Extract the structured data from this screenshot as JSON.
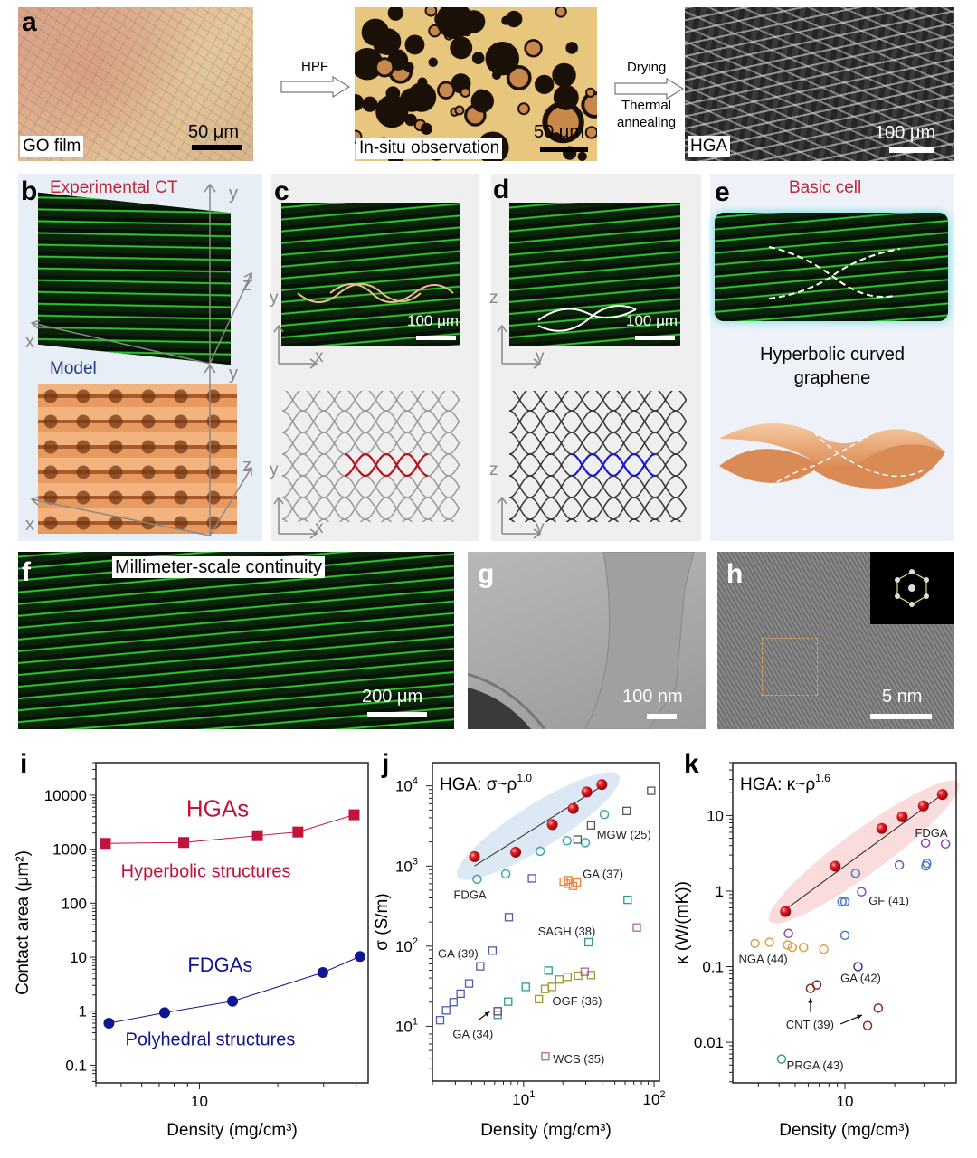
{
  "panels": {
    "a": "a",
    "b": "b",
    "c": "c",
    "d": "d",
    "e": "e",
    "f": "f",
    "g": "g",
    "h": "h",
    "i": "i",
    "j": "j",
    "k": "k"
  },
  "row_a": {
    "go_film_label": "GO film",
    "go_scale": "50 μm",
    "step1": "HPF",
    "insitu_label": "In-situ observation",
    "insitu_scale": "50 μm",
    "step2_line1": "Drying",
    "step2_line2": "Thermal",
    "step2_line3": "annealing",
    "hga_label": "HGA",
    "hga_scale": "100 μm"
  },
  "panel_b": {
    "title_ct": "Experimental CT",
    "title_model": "Model",
    "axis_x": "x",
    "axis_y": "y",
    "axis_z": "z"
  },
  "panel_c": {
    "scale": "100 μm",
    "axis_h": "x",
    "axis_v": "y",
    "highlight_color": "#b5121b"
  },
  "panel_d": {
    "scale": "100 μm",
    "axis_h": "y",
    "axis_v": "z",
    "highlight_color": "#1a1ac8"
  },
  "panel_e": {
    "title": "Basic cell",
    "caption_line1": "Hyperbolic curved",
    "caption_line2": "graphene"
  },
  "panel_f": {
    "label": "Millimeter-scale continuity",
    "scale": "200 μm"
  },
  "panel_g": {
    "scale": "100 nm"
  },
  "panel_h": {
    "scale": "5 nm"
  },
  "chart_data": [
    {
      "id": "i",
      "type": "line",
      "xscale": "log",
      "yscale": "log",
      "xlabel": "Density (mg/cm³)",
      "ylabel": "Contact area (μm²)",
      "xlim": [
        4,
        44.5
      ],
      "ylim": [
        0.047,
        40000
      ],
      "xticks": [
        {
          "v": 10,
          "t": "10"
        }
      ],
      "yticks": [
        {
          "v": 0.1,
          "t": "0.1"
        },
        {
          "v": 1,
          "t": "1"
        },
        {
          "v": 10,
          "t": "10"
        },
        {
          "v": 100,
          "t": "100"
        },
        {
          "v": 1000,
          "t": "1000"
        },
        {
          "v": 10000,
          "t": "10000"
        }
      ],
      "series": [
        {
          "name": "HGAs",
          "color": "#c0143c",
          "marker": "filled-square",
          "line": true,
          "label_at": [
            8.9,
            5680
          ],
          "label_size": 26,
          "x": [
            4.35,
            8.7,
            16.7,
            23.9,
            39.3
          ],
          "y": [
            1280,
            1330,
            1780,
            2080,
            4340
          ]
        },
        {
          "name": "FDGAs",
          "color": "#10168f",
          "marker": "filled-circle",
          "line": true,
          "label_at": [
            9.0,
            7.7
          ],
          "label_size": 22,
          "x": [
            4.49,
            7.35,
            13.4,
            29.8,
            41.4
          ],
          "y": [
            0.6,
            0.94,
            1.53,
            5.2,
            10.3
          ]
        }
      ],
      "annotations": [
        {
          "text": "Hyperbolic structures",
          "color": "#c0143c",
          "at": [
            4.99,
            401
          ]
        },
        {
          "text": "Polyhedral structures",
          "color": "#10168f",
          "at": [
            5.19,
            0.306
          ]
        }
      ]
    },
    {
      "id": "j",
      "type": "scatter",
      "xscale": "log",
      "yscale": "log",
      "title": "HGA: σ~ρ",
      "title_exponent": "1.0",
      "xlabel": "Density (mg/cm³)",
      "ylabel": "σ (S/m)",
      "xlim": [
        2,
        110
      ],
      "ylim": [
        2.07,
        19500
      ],
      "xticks": [
        {
          "v": 10,
          "t": "10",
          "sup": "1"
        },
        {
          "v": 100,
          "t": "10",
          "sup": "2"
        }
      ],
      "yticks": [
        {
          "v": 10,
          "t": "10",
          "sup": "1"
        },
        {
          "v": 100,
          "t": "10",
          "sup": "2"
        },
        {
          "v": 1000,
          "t": "10",
          "sup": "3"
        },
        {
          "v": 10000,
          "t": "10",
          "sup": "4"
        }
      ],
      "fit": {
        "from": [
          4.2,
          1000
        ],
        "to": [
          40,
          10000
        ],
        "band_color": "#dce8f4"
      },
      "series": [
        {
          "name": "",
          "color": "#d8101c",
          "marker": "sphere",
          "x": [
            4.2,
            8.7,
            16.6,
            24,
            30.5,
            39.8
          ],
          "y": [
            1310,
            1490,
            3300,
            5230,
            8410,
            10400
          ]
        },
        {
          "name": "FDGA",
          "color": "#3aa6b9",
          "marker": "open-circle",
          "label_at": [
            2.91,
            443
          ],
          "x": [
            4.4,
            7.3,
            13.4,
            21.5,
            29.7,
            41.6
          ],
          "y": [
            684,
            798,
            1530,
            2070,
            1960,
            4400
          ]
        },
        {
          "name": "MGW (25)",
          "color": "#555555",
          "marker": "open-square",
          "label_at": [
            36.4,
            2500
          ],
          "x": [
            25.9,
            32.9,
            61.6,
            95
          ],
          "y": [
            2140,
            3220,
            4870,
            8700
          ]
        },
        {
          "name": "GA (37)",
          "color": "#e8833a",
          "marker": "open-square",
          "label_at": [
            28.4,
            812
          ],
          "x": [
            20.3,
            21.9,
            22,
            23.9,
            25.6
          ],
          "y": [
            638,
            600,
            666,
            565,
            621
          ]
        },
        {
          "name": "GA (39)",
          "color": "#4a5fa8",
          "marker": "open-square",
          "label_at": [
            2.2,
            82
          ],
          "x": [
            2.29,
            2.55,
            2.9,
            3.29,
            3.82,
            4.65,
            5.78,
            7.71,
            11.6
          ],
          "y": [
            11.9,
            15.8,
            20,
            25.5,
            34.2,
            56,
            87.8,
            230,
            701
          ]
        },
        {
          "name": "SAGH (38)",
          "color": "#2a9a8f",
          "marker": "open-square",
          "label_at": [
            12.9,
            154
          ],
          "x": [
            6.33,
            7.62,
            10.4,
            15.5,
            31.5,
            62.7
          ],
          "y": [
            13.9,
            20.3,
            31,
            49.5,
            112,
            379
          ]
        },
        {
          "name": "GA (34)",
          "color": "#5a3f6a",
          "marker": "open-square",
          "label_at": [
            2.86,
            8.1
          ],
          "x": [
            6.33
          ],
          "y": [
            15.4
          ]
        },
        {
          "name": "OGF (36)",
          "color": "#9a9a2a",
          "marker": "open-square",
          "label_at": [
            16.6,
            21
          ],
          "x": [
            13.1,
            14.6,
            16.5,
            18.8,
            21.7,
            26.2,
            32.9
          ],
          "y": [
            21.8,
            29.2,
            31,
            38.3,
            41.4,
            42.8,
            43.6
          ]
        },
        {
          "name": "WCS (35)",
          "color": "#b060b0",
          "marker": "open-square",
          "label_at": [
            16.8,
            3.97
          ],
          "x": [
            14.7,
            29.4,
            73.8
          ],
          "y": [
            4.2,
            47.9,
            171
          ]
        }
      ],
      "arrows": [
        {
          "from": [
            4.48,
            11.9
          ],
          "to": [
            5.5,
            15.2
          ]
        }
      ]
    },
    {
      "id": "k",
      "type": "scatter",
      "xscale": "log",
      "yscale": "log",
      "title": "HGA: κ~ρ",
      "title_exponent": "1.6",
      "xlabel": "Density (mg/cm³)",
      "ylabel": "κ (W/(mK))",
      "xlim": [
        2.1,
        47
      ],
      "ylim": [
        0.0029,
        50
      ],
      "xticks": [
        {
          "v": 10,
          "t": "10"
        }
      ],
      "yticks": [
        {
          "v": 0.01,
          "t": "0.01"
        },
        {
          "v": 0.1,
          "t": "0.1"
        },
        {
          "v": 1,
          "t": "1"
        },
        {
          "v": 10,
          "t": "10"
        }
      ],
      "fit": {
        "from": [
          4.37,
          0.57
        ],
        "to": [
          38.8,
          19
        ],
        "band_color": "#fadcdc"
      },
      "series": [
        {
          "name": "",
          "color": "#d8101c",
          "marker": "sphere",
          "x": [
            4.37,
            8.74,
            16.7,
            22.2,
            29.8,
            38.8
          ],
          "y": [
            0.535,
            2.13,
            6.73,
            9.6,
            13.4,
            19
          ]
        },
        {
          "name": "FDGA",
          "color": "#8a4aa8",
          "marker": "open-circle",
          "label_at": [
            26.5,
            6.0
          ],
          "x": [
            4.56,
            12.6,
            21.3,
            30.7,
            40.5
          ],
          "y": [
            0.275,
            0.98,
            2.21,
            4.33,
            4.21
          ]
        },
        {
          "name": "GF (41)",
          "color": "#4a7ac8",
          "marker": "open-circle",
          "label_at": [
            13.9,
            0.76
          ],
          "x": [
            9.6,
            10,
            11.6,
            10,
            31.2,
            30.8
          ],
          "y": [
            0.72,
            0.72,
            1.72,
            0.26,
            2.33,
            2.15
          ]
        },
        {
          "name": "GA (42)",
          "color": "#3a3aa0",
          "marker": "open-circle",
          "label_at": [
            9.4,
            0.072
          ],
          "x": [
            12
          ],
          "y": [
            0.1
          ]
        },
        {
          "name": "NGA (44)",
          "color": "#e0a040",
          "marker": "open-circle",
          "label_at": [
            2.28,
            0.128
          ],
          "x": [
            2.86,
            3.5,
            4.5,
            4.81,
            5.62,
            7.45
          ],
          "y": [
            0.203,
            0.21,
            0.194,
            0.18,
            0.18,
            0.17
          ]
        },
        {
          "name": "CNT (39)",
          "color": "#8a2a2a",
          "marker": "open-circle",
          "label_at": [
            4.4,
            0.0174
          ],
          "x": [
            6.19,
            6.77,
            13.7,
            15.9
          ],
          "y": [
            0.0515,
            0.0575,
            0.0166,
            0.0283
          ]
        },
        {
          "name": "PRGA (43)",
          "color": "#3aa07a",
          "marker": "open-circle",
          "label_at": [
            4.45,
            0.005
          ],
          "x": [
            4.14
          ],
          "y": [
            0.006
          ]
        }
      ],
      "arrows": [
        {
          "from": [
            6.19,
            0.025
          ],
          "to": [
            6.19,
            0.0385
          ]
        },
        {
          "from": [
            9.4,
            0.0174
          ],
          "to": [
            12.7,
            0.0229
          ]
        }
      ]
    }
  ]
}
